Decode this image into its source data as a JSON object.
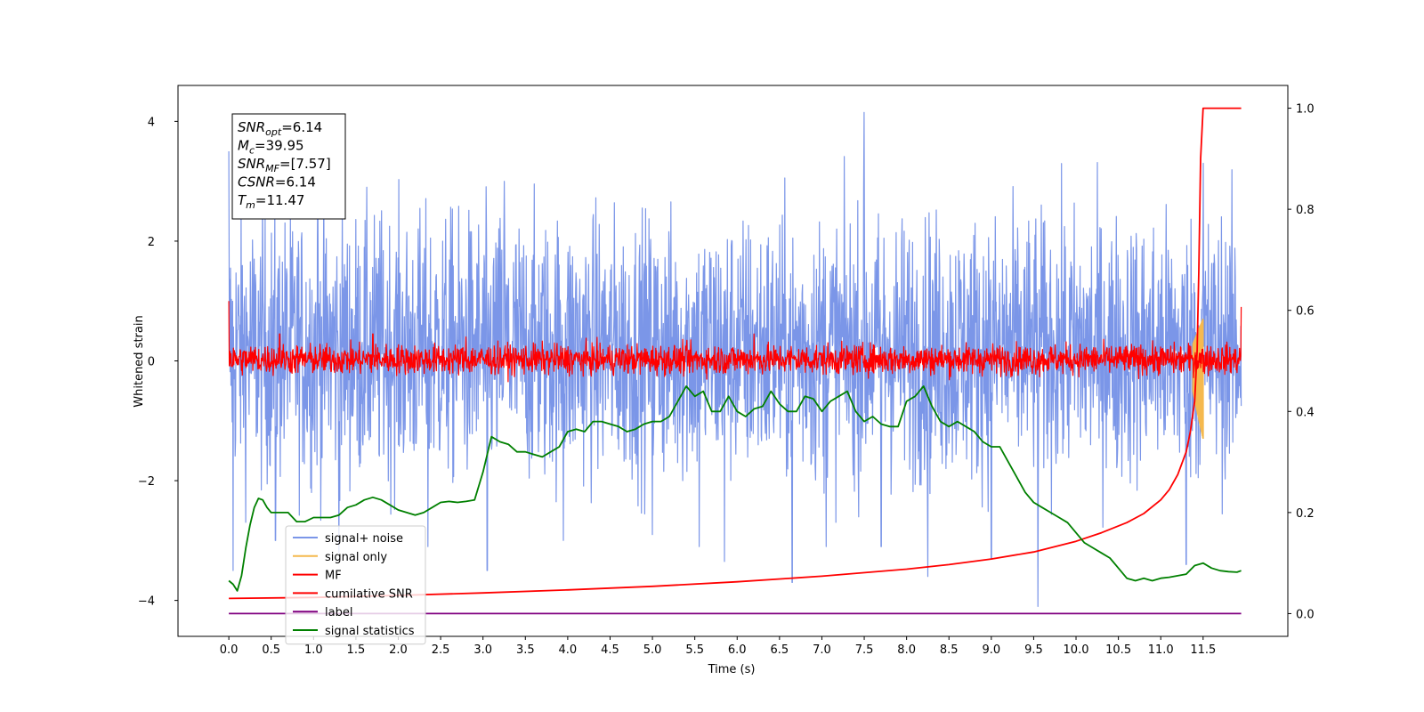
{
  "chart_data": {
    "type": "line",
    "xlabel": "Time (s)",
    "ylabel": "Whitened strain",
    "xlim": [
      -0.6,
      12.5
    ],
    "ylim": [
      -4.6,
      4.6
    ],
    "y2lim": [
      -0.045,
      1.045
    ],
    "x_ticks": [
      "0.0",
      "0.5",
      "1.0",
      "1.5",
      "2.0",
      "2.5",
      "3.0",
      "3.5",
      "4.0",
      "4.5",
      "5.0",
      "5.5",
      "6.0",
      "6.5",
      "7.0",
      "7.5",
      "8.0",
      "8.5",
      "9.0",
      "9.5",
      "10.0",
      "10.5",
      "11.0",
      "11.5"
    ],
    "y_ticks": [
      "4",
      "2",
      "0",
      "−2",
      "−4"
    ],
    "y2_ticks": [
      "1.0",
      "0.8",
      "0.6",
      "0.4",
      "0.2",
      "0.0"
    ],
    "legend_position": "lower-left",
    "annotation": {
      "lines": [
        {
          "base": "SNR",
          "sub": "opt",
          "value": "=6.14"
        },
        {
          "base": "M",
          "sub": "c",
          "value": "=39.95"
        },
        {
          "base": "SNR",
          "sub": "MF",
          "value": "=[7.57]"
        },
        {
          "base": "CSNR",
          "sub": "",
          "value": "=6.14"
        },
        {
          "base": "T",
          "sub": "m",
          "value": "=11.47"
        }
      ]
    },
    "series": [
      {
        "name": "signal+ noise",
        "color": "#7b96e8",
        "axis": "left",
        "kind": "noise",
        "x_range": [
          0.0,
          11.95
        ],
        "band": [
          -1.8,
          2.2
        ],
        "spike_points": [
          [
            0.0,
            3.5
          ],
          [
            0.05,
            -3.5
          ],
          [
            0.4,
            2.8
          ],
          [
            0.55,
            -3.0
          ],
          [
            1.05,
            3.0
          ],
          [
            1.3,
            -3.2
          ],
          [
            2.35,
            -3.1
          ],
          [
            3.05,
            -3.5
          ],
          [
            3.25,
            3.0
          ],
          [
            3.95,
            -3.0
          ],
          [
            5.0,
            -2.9
          ],
          [
            5.55,
            -3.1
          ],
          [
            5.85,
            -3.35
          ],
          [
            6.65,
            -3.7
          ],
          [
            7.05,
            -3.1
          ],
          [
            7.5,
            4.15
          ],
          [
            7.7,
            -3.1
          ],
          [
            8.25,
            -3.6
          ],
          [
            9.0,
            -3.3
          ],
          [
            9.55,
            -4.1
          ],
          [
            11.3,
            -3.4
          ],
          [
            11.5,
            3.3
          ]
        ]
      },
      {
        "name": "signal only",
        "color": "#f5b94e",
        "axis": "left",
        "kind": "chirp",
        "x_range": [
          11.38,
          11.5
        ],
        "y_range": [
          -1.3,
          0.7
        ]
      },
      {
        "name": "MF",
        "color": "#ff0000",
        "axis": "left",
        "kind": "noise",
        "x_range": [
          0.0,
          11.95
        ],
        "band": [
          -0.2,
          0.25
        ],
        "spike_points": [
          [
            0.0,
            1.0
          ],
          [
            0.6,
            0.45
          ],
          [
            1.7,
            0.45
          ],
          [
            2.8,
            0.4
          ],
          [
            6.2,
            0.45
          ],
          [
            11.95,
            0.9
          ]
        ]
      },
      {
        "name": "cumilative SNR",
        "color": "#ff0000",
        "axis": "right",
        "kind": "line",
        "x": [
          0.0,
          1.0,
          2.0,
          3.0,
          4.0,
          5.0,
          6.0,
          7.0,
          8.0,
          8.5,
          9.0,
          9.5,
          10.0,
          10.3,
          10.6,
          10.8,
          11.0,
          11.1,
          11.2,
          11.3,
          11.35,
          11.4,
          11.43,
          11.45,
          11.47,
          11.5,
          11.6,
          11.8,
          11.95
        ],
        "y": [
          0.03,
          0.032,
          0.036,
          0.041,
          0.047,
          0.054,
          0.063,
          0.074,
          0.088,
          0.097,
          0.108,
          0.122,
          0.143,
          0.16,
          0.18,
          0.198,
          0.225,
          0.245,
          0.275,
          0.32,
          0.36,
          0.42,
          0.52,
          0.68,
          0.9,
          1.0,
          1.0,
          1.0,
          1.0
        ]
      },
      {
        "name": "label",
        "color": "#800080",
        "axis": "right",
        "kind": "line",
        "x": [
          0.0,
          11.95
        ],
        "y": [
          0.0,
          0.0
        ]
      },
      {
        "name": "signal statistics",
        "color": "#008000",
        "axis": "right",
        "kind": "line",
        "x": [
          0.0,
          0.05,
          0.1,
          0.15,
          0.2,
          0.25,
          0.3,
          0.35,
          0.4,
          0.45,
          0.5,
          0.6,
          0.7,
          0.8,
          0.9,
          1.0,
          1.1,
          1.2,
          1.3,
          1.4,
          1.5,
          1.6,
          1.7,
          1.8,
          1.9,
          2.0,
          2.1,
          2.2,
          2.3,
          2.4,
          2.5,
          2.6,
          2.7,
          2.8,
          2.9,
          3.0,
          3.1,
          3.2,
          3.3,
          3.4,
          3.5,
          3.6,
          3.7,
          3.8,
          3.9,
          4.0,
          4.1,
          4.2,
          4.3,
          4.4,
          4.5,
          4.6,
          4.7,
          4.8,
          4.9,
          5.0,
          5.1,
          5.2,
          5.3,
          5.4,
          5.5,
          5.6,
          5.7,
          5.8,
          5.9,
          6.0,
          6.1,
          6.2,
          6.3,
          6.4,
          6.5,
          6.6,
          6.7,
          6.8,
          6.9,
          7.0,
          7.1,
          7.2,
          7.3,
          7.4,
          7.5,
          7.6,
          7.7,
          7.8,
          7.9,
          8.0,
          8.1,
          8.2,
          8.3,
          8.4,
          8.5,
          8.6,
          8.7,
          8.8,
          8.9,
          9.0,
          9.1,
          9.2,
          9.3,
          9.4,
          9.5,
          9.6,
          9.7,
          9.8,
          9.9,
          10.0,
          10.1,
          10.2,
          10.3,
          10.4,
          10.5,
          10.6,
          10.7,
          10.8,
          10.9,
          11.0,
          11.1,
          11.2,
          11.3,
          11.4,
          11.5,
          11.6,
          11.7,
          11.8,
          11.9,
          11.95
        ],
        "y": [
          0.065,
          0.058,
          0.045,
          0.075,
          0.13,
          0.175,
          0.21,
          0.228,
          0.225,
          0.21,
          0.2,
          0.2,
          0.2,
          0.182,
          0.182,
          0.19,
          0.19,
          0.19,
          0.195,
          0.21,
          0.215,
          0.225,
          0.23,
          0.225,
          0.215,
          0.205,
          0.2,
          0.195,
          0.2,
          0.21,
          0.22,
          0.222,
          0.22,
          0.222,
          0.225,
          0.28,
          0.35,
          0.34,
          0.335,
          0.32,
          0.32,
          0.315,
          0.31,
          0.32,
          0.33,
          0.36,
          0.365,
          0.36,
          0.38,
          0.38,
          0.375,
          0.37,
          0.36,
          0.365,
          0.375,
          0.38,
          0.38,
          0.39,
          0.42,
          0.45,
          0.43,
          0.44,
          0.4,
          0.4,
          0.43,
          0.4,
          0.39,
          0.405,
          0.41,
          0.44,
          0.415,
          0.4,
          0.4,
          0.43,
          0.425,
          0.4,
          0.42,
          0.43,
          0.44,
          0.4,
          0.38,
          0.39,
          0.375,
          0.37,
          0.37,
          0.42,
          0.43,
          0.45,
          0.41,
          0.38,
          0.37,
          0.38,
          0.37,
          0.36,
          0.34,
          0.33,
          0.33,
          0.3,
          0.27,
          0.24,
          0.22,
          0.21,
          0.2,
          0.19,
          0.18,
          0.16,
          0.14,
          0.13,
          0.12,
          0.11,
          0.09,
          0.07,
          0.065,
          0.07,
          0.065,
          0.07,
          0.072,
          0.075,
          0.078,
          0.095,
          0.1,
          0.09,
          0.085,
          0.083,
          0.082,
          0.085
        ]
      }
    ]
  }
}
